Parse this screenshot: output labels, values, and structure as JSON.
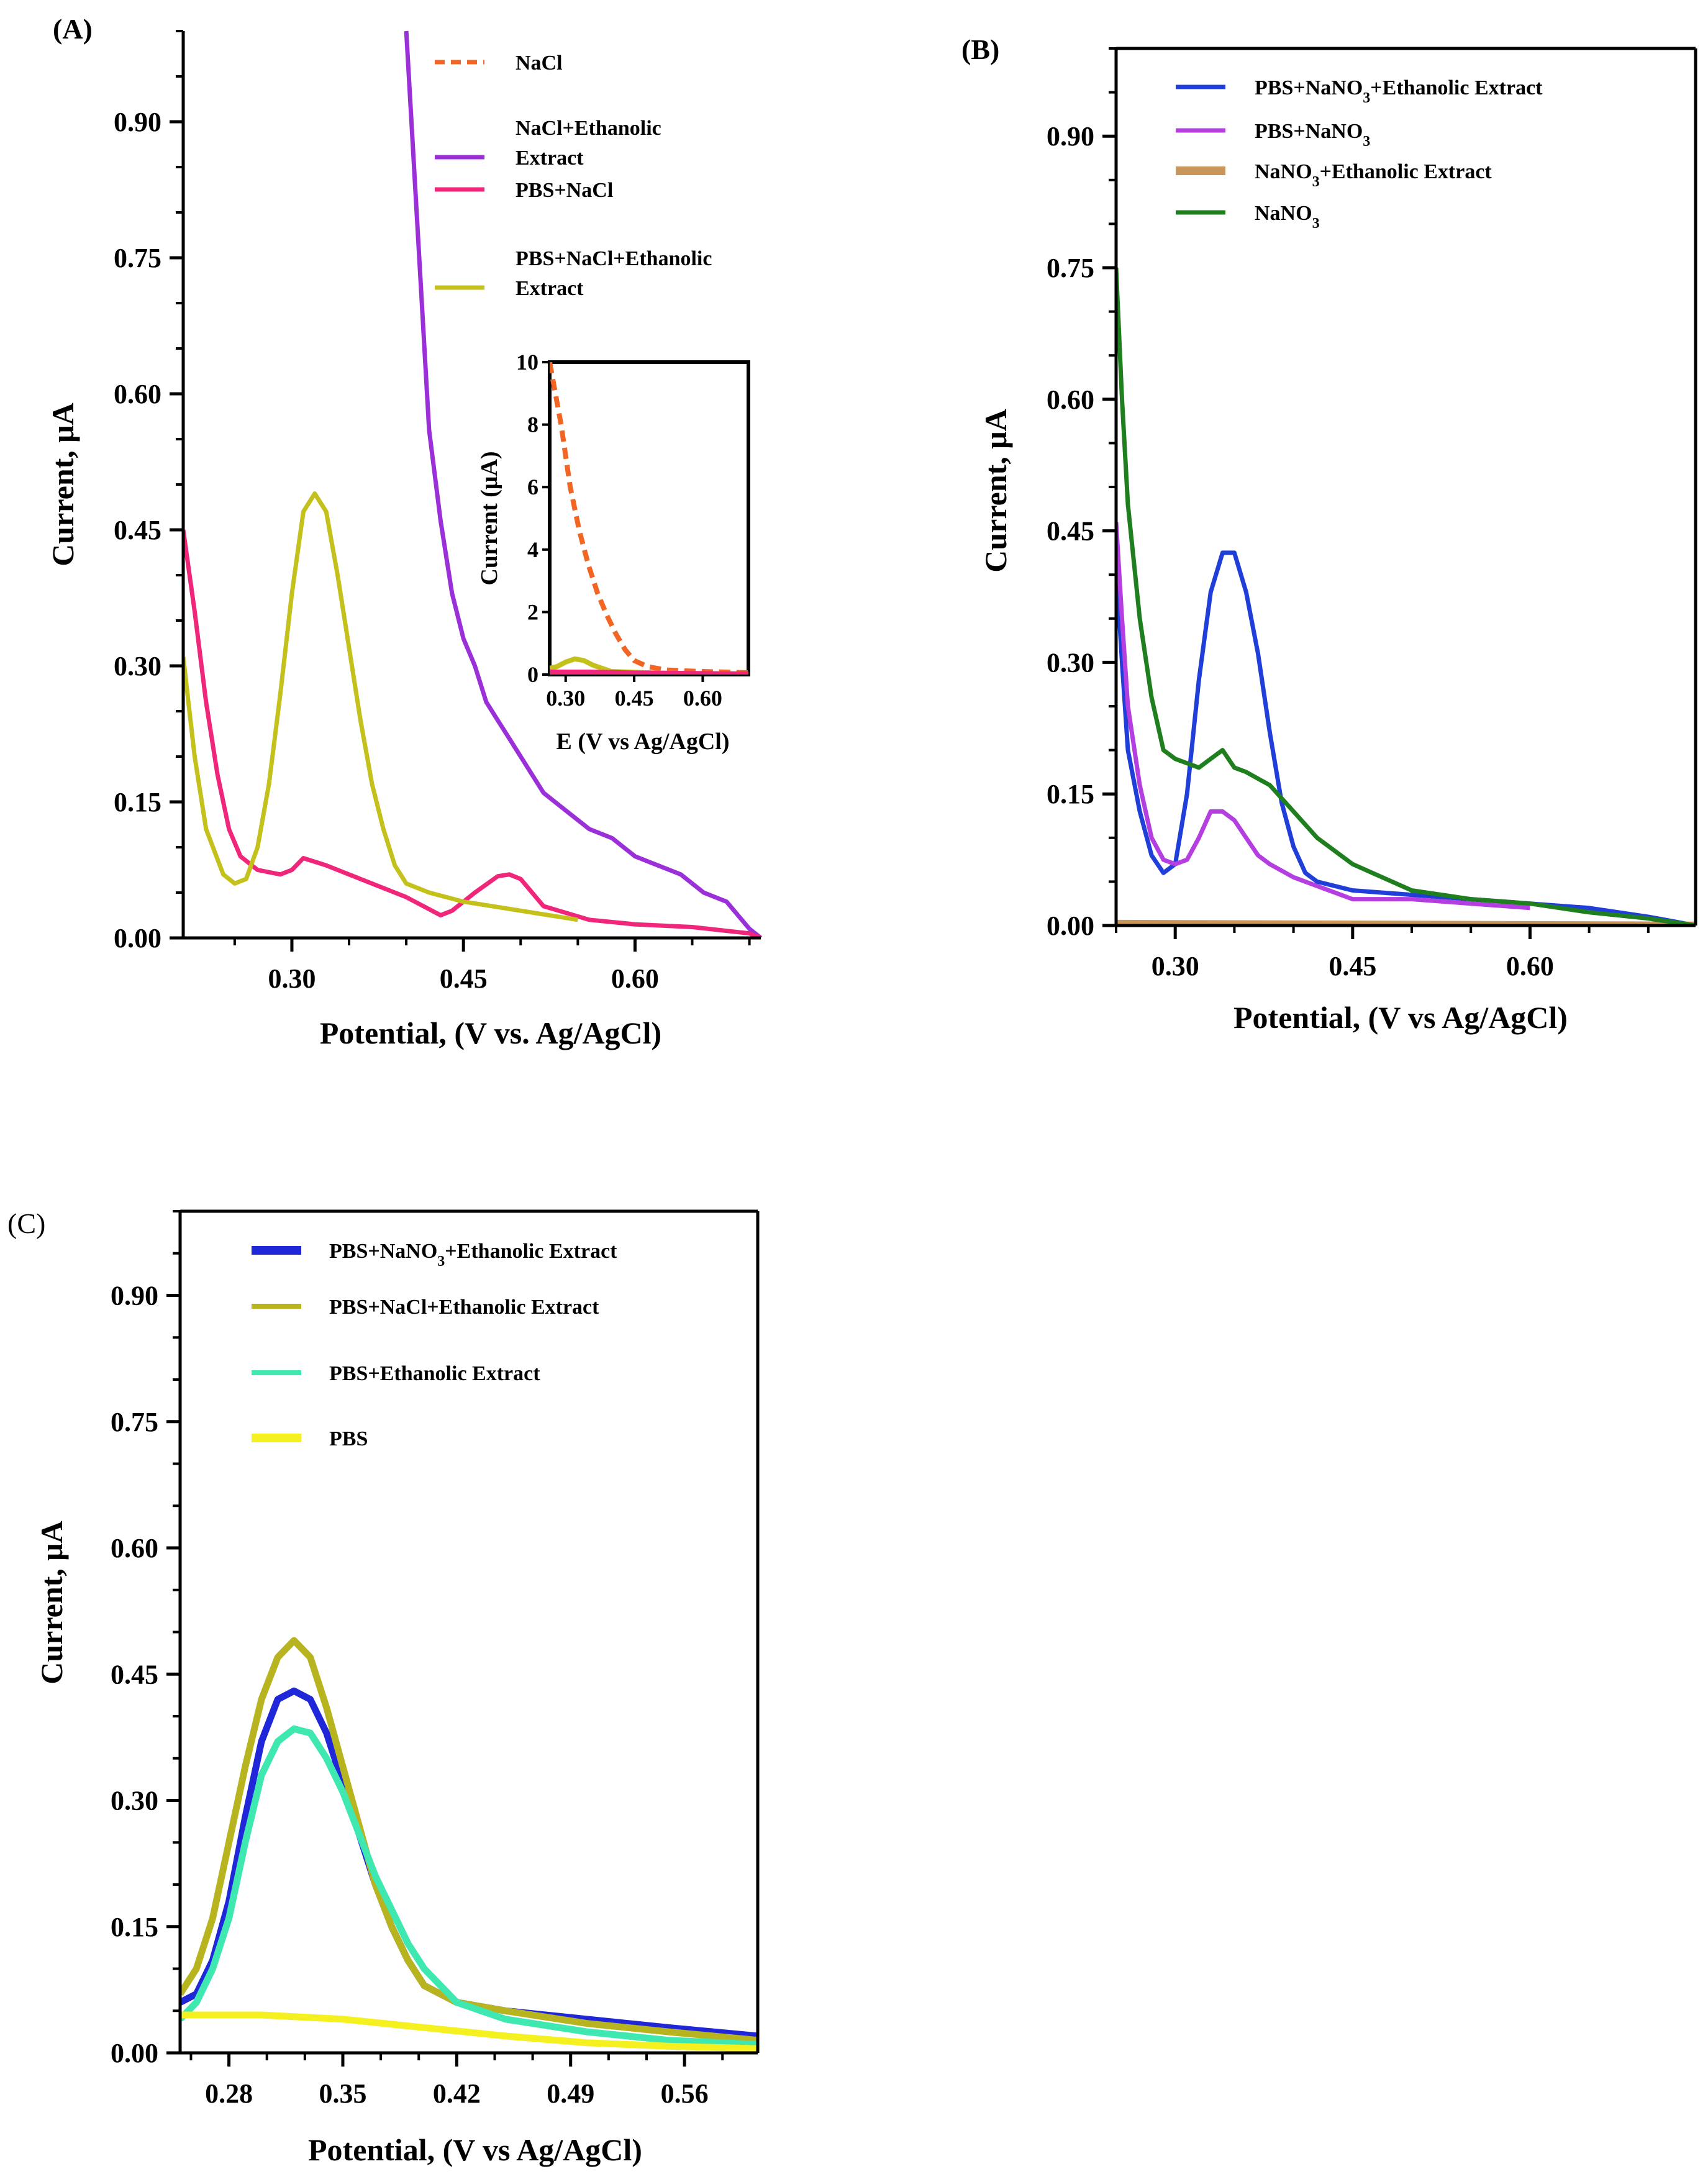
{
  "chart_data": [
    {
      "panel": "A",
      "panel_label": "(A)",
      "type": "line",
      "xlabel": "Potential, (V vs. Ag/AgCl)",
      "ylabel": "Current, μA",
      "xlim": [
        0.205,
        0.71
      ],
      "ylim": [
        0,
        1.0
      ],
      "xticks": [
        "0.30",
        "0.45",
        "0.60"
      ],
      "yticks": [
        "0.00",
        "0.15",
        "0.30",
        "0.45",
        "0.60",
        "0.75",
        "0.90"
      ],
      "legend_position": "top-right",
      "series": [
        {
          "name": "NaCl",
          "label_lines": [
            "NaCl"
          ],
          "color": "#f26522",
          "style": "dashed",
          "x": [],
          "y": []
        },
        {
          "name": "NaCl+Ethanolic Extract",
          "label_lines": [
            "NaCl+Ethanolic",
            "Extract"
          ],
          "color": "#9b30d9",
          "style": "solid",
          "x": [
            0.4,
            0.41,
            0.42,
            0.43,
            0.44,
            0.45,
            0.46,
            0.47,
            0.48,
            0.49,
            0.5,
            0.52,
            0.54,
            0.56,
            0.58,
            0.6,
            0.62,
            0.64,
            0.66,
            0.68,
            0.7,
            0.71
          ],
          "y": [
            1.0,
            0.78,
            0.56,
            0.46,
            0.38,
            0.33,
            0.3,
            0.26,
            0.24,
            0.22,
            0.2,
            0.16,
            0.14,
            0.12,
            0.11,
            0.09,
            0.08,
            0.07,
            0.05,
            0.04,
            0.01,
            0.0
          ]
        },
        {
          "name": "PBS+NaCl",
          "label_lines": [
            "PBS+NaCl"
          ],
          "color": "#f0267a",
          "style": "solid",
          "x": [
            0.205,
            0.215,
            0.225,
            0.235,
            0.245,
            0.255,
            0.27,
            0.29,
            0.3,
            0.31,
            0.33,
            0.36,
            0.4,
            0.43,
            0.44,
            0.46,
            0.48,
            0.49,
            0.5,
            0.52,
            0.56,
            0.6,
            0.65,
            0.7,
            0.71
          ],
          "y": [
            0.45,
            0.36,
            0.26,
            0.18,
            0.12,
            0.09,
            0.075,
            0.07,
            0.075,
            0.088,
            0.08,
            0.065,
            0.045,
            0.025,
            0.03,
            0.05,
            0.068,
            0.07,
            0.065,
            0.035,
            0.02,
            0.015,
            0.012,
            0.005,
            0.0
          ]
        },
        {
          "name": "PBS+NaCl+Ethanolic Extract",
          "label_lines": [
            "PBS+NaCl+Ethanolic",
            "Extract"
          ],
          "color": "#c4c01c",
          "style": "solid",
          "x": [
            0.205,
            0.215,
            0.225,
            0.24,
            0.25,
            0.26,
            0.27,
            0.28,
            0.29,
            0.3,
            0.31,
            0.32,
            0.33,
            0.34,
            0.35,
            0.36,
            0.37,
            0.38,
            0.39,
            0.4,
            0.42,
            0.45,
            0.5,
            0.55
          ],
          "y": [
            0.31,
            0.2,
            0.12,
            0.07,
            0.06,
            0.065,
            0.1,
            0.17,
            0.27,
            0.38,
            0.47,
            0.49,
            0.47,
            0.4,
            0.32,
            0.24,
            0.17,
            0.12,
            0.08,
            0.06,
            0.05,
            0.04,
            0.03,
            0.02
          ]
        }
      ],
      "inset": {
        "xlabel": "E (V vs Ag/AgCl)",
        "ylabel": "Current (μA)",
        "xlim": [
          0.265,
          0.7
        ],
        "ylim": [
          0,
          10
        ],
        "xticks": [
          "0.30",
          "0.45",
          "0.60"
        ],
        "yticks": [
          "0",
          "2",
          "4",
          "6",
          "8",
          "10"
        ],
        "series": [
          {
            "name": "NaCl",
            "color": "#f26522",
            "style": "dashed",
            "x": [
              0.265,
              0.29,
              0.31,
              0.33,
              0.35,
              0.37,
              0.39,
              0.41,
              0.43,
              0.45,
              0.48,
              0.52,
              0.56,
              0.6,
              0.65,
              0.7
            ],
            "y": [
              10,
              8,
              6,
              4.6,
              3.5,
              2.6,
              1.9,
              1.3,
              0.8,
              0.45,
              0.25,
              0.15,
              0.12,
              0.1,
              0.08,
              0.06
            ]
          },
          {
            "name": "PBS+NaCl+Ethanolic Extract",
            "color": "#c4c01c",
            "style": "solid",
            "x": [
              0.265,
              0.28,
              0.3,
              0.32,
              0.34,
              0.36,
              0.4,
              0.5,
              0.6,
              0.7
            ],
            "y": [
              0.2,
              0.25,
              0.4,
              0.5,
              0.45,
              0.3,
              0.1,
              0.05,
              0.03,
              0.02
            ]
          },
          {
            "name": "PBS+NaCl",
            "color": "#f0267a",
            "style": "solid",
            "x": [
              0.265,
              0.35,
              0.45,
              0.55,
              0.7
            ],
            "y": [
              0.08,
              0.08,
              0.05,
              0.04,
              0.02
            ]
          }
        ]
      }
    },
    {
      "panel": "B",
      "panel_label": "(B)",
      "type": "line",
      "xlabel": "Potential, (V vs Ag/AgCl)",
      "ylabel": "Current, μA",
      "xlim": [
        0.25,
        0.74
      ],
      "ylim": [
        0,
        1.0
      ],
      "xticks": [
        "0.30",
        "0.45",
        "0.60"
      ],
      "yticks": [
        "0.00",
        "0.15",
        "0.30",
        "0.45",
        "0.60",
        "0.75",
        "0.90"
      ],
      "legend_position": "top",
      "series": [
        {
          "name": "PBS+NaNO3+Ethanolic Extract",
          "label_base": "PBS+NaNO",
          "label_sub": "3",
          "label_after": "+Ethanolic Extract",
          "color": "#1f3fd8",
          "style": "solid",
          "x": [
            0.25,
            0.255,
            0.26,
            0.27,
            0.28,
            0.29,
            0.3,
            0.31,
            0.32,
            0.33,
            0.34,
            0.35,
            0.36,
            0.37,
            0.38,
            0.39,
            0.4,
            0.41,
            0.42,
            0.45,
            0.5,
            0.55,
            0.6,
            0.65,
            0.7,
            0.74
          ],
          "y": [
            0.41,
            0.3,
            0.2,
            0.13,
            0.08,
            0.06,
            0.07,
            0.15,
            0.28,
            0.38,
            0.425,
            0.425,
            0.38,
            0.31,
            0.22,
            0.14,
            0.09,
            0.06,
            0.05,
            0.04,
            0.035,
            0.03,
            0.025,
            0.02,
            0.01,
            0.0
          ]
        },
        {
          "name": "PBS+NaNO3",
          "label_base": "PBS+NaNO",
          "label_sub": "3",
          "label_after": "",
          "color": "#b43ee0",
          "style": "solid",
          "x": [
            0.25,
            0.255,
            0.26,
            0.27,
            0.28,
            0.29,
            0.3,
            0.31,
            0.32,
            0.33,
            0.34,
            0.35,
            0.36,
            0.37,
            0.38,
            0.4,
            0.42,
            0.45,
            0.5,
            0.55,
            0.6
          ],
          "y": [
            0.46,
            0.35,
            0.25,
            0.16,
            0.1,
            0.075,
            0.07,
            0.075,
            0.1,
            0.13,
            0.13,
            0.12,
            0.1,
            0.08,
            0.07,
            0.055,
            0.045,
            0.03,
            0.03,
            0.025,
            0.02
          ]
        },
        {
          "name": "NaNO3+Ethanolic Extract",
          "label_base": "NaNO",
          "label_sub": "3",
          "label_after": "+Ethanolic Extract",
          "color": "#c8965a",
          "style": "solid",
          "x": [
            0.25,
            0.74
          ],
          "y": [
            0.004,
            0.002
          ]
        },
        {
          "name": "NaNO3",
          "label_base": "NaNO",
          "label_sub": "3",
          "label_after": "",
          "color": "#1f7f1f",
          "style": "solid",
          "x": [
            0.25,
            0.255,
            0.26,
            0.27,
            0.28,
            0.29,
            0.3,
            0.32,
            0.33,
            0.34,
            0.35,
            0.36,
            0.38,
            0.4,
            0.42,
            0.45,
            0.5,
            0.55,
            0.6,
            0.65,
            0.7,
            0.74
          ],
          "y": [
            0.75,
            0.6,
            0.48,
            0.35,
            0.26,
            0.2,
            0.19,
            0.18,
            0.19,
            0.2,
            0.18,
            0.175,
            0.16,
            0.13,
            0.1,
            0.07,
            0.04,
            0.03,
            0.025,
            0.015,
            0.008,
            0.0
          ]
        }
      ]
    },
    {
      "panel": "C",
      "panel_label": "(C)",
      "type": "line",
      "xlabel": "Potential, (V vs Ag/AgCl)",
      "ylabel": "Current, μA",
      "xlim": [
        0.25,
        0.605
      ],
      "ylim": [
        0,
        1.0
      ],
      "xticks": [
        "0.28",
        "0.35",
        "0.42",
        "0.49",
        "0.56"
      ],
      "yticks": [
        "0.00",
        "0.15",
        "0.30",
        "0.45",
        "0.60",
        "0.75",
        "0.90"
      ],
      "legend_position": "top-left",
      "series": [
        {
          "name": "PBS+NaNO3+Ethanolic Extract",
          "label_base": "PBS+NaNO",
          "label_sub": "3",
          "label_after": "+Ethanolic Extract",
          "color": "#1f27d8",
          "style": "solid",
          "x": [
            0.25,
            0.26,
            0.27,
            0.28,
            0.29,
            0.3,
            0.31,
            0.32,
            0.33,
            0.34,
            0.35,
            0.36,
            0.37,
            0.38,
            0.39,
            0.4,
            0.42,
            0.45,
            0.5,
            0.55,
            0.605
          ],
          "y": [
            0.06,
            0.07,
            0.11,
            0.18,
            0.28,
            0.37,
            0.42,
            0.43,
            0.42,
            0.38,
            0.32,
            0.26,
            0.2,
            0.15,
            0.11,
            0.08,
            0.06,
            0.05,
            0.04,
            0.03,
            0.02
          ]
        },
        {
          "name": "PBS+NaCl+Ethanolic Extract",
          "label_base": "PBS+NaCl+Ethanolic Extract",
          "label_sub": "",
          "label_after": "",
          "color": "#b8b420",
          "style": "solid",
          "x": [
            0.25,
            0.26,
            0.27,
            0.28,
            0.29,
            0.3,
            0.31,
            0.32,
            0.33,
            0.34,
            0.35,
            0.36,
            0.37,
            0.38,
            0.39,
            0.4,
            0.42,
            0.45,
            0.5,
            0.55,
            0.605
          ],
          "y": [
            0.07,
            0.1,
            0.16,
            0.25,
            0.34,
            0.42,
            0.47,
            0.49,
            0.47,
            0.41,
            0.34,
            0.27,
            0.2,
            0.15,
            0.11,
            0.08,
            0.06,
            0.05,
            0.035,
            0.025,
            0.015
          ]
        },
        {
          "name": "PBS+Ethanolic Extract",
          "label_base": "PBS+Ethanolic Extract",
          "label_sub": "",
          "label_after": "",
          "color": "#3ee8b0",
          "style": "solid",
          "x": [
            0.25,
            0.26,
            0.27,
            0.28,
            0.29,
            0.3,
            0.31,
            0.32,
            0.33,
            0.34,
            0.35,
            0.36,
            0.37,
            0.38,
            0.39,
            0.4,
            0.42,
            0.45,
            0.5,
            0.55,
            0.605
          ],
          "y": [
            0.04,
            0.06,
            0.1,
            0.16,
            0.25,
            0.33,
            0.37,
            0.385,
            0.38,
            0.35,
            0.31,
            0.26,
            0.21,
            0.17,
            0.13,
            0.1,
            0.06,
            0.04,
            0.025,
            0.015,
            0.01
          ]
        },
        {
          "name": "PBS",
          "label_base": "PBS",
          "label_sub": "",
          "label_after": "",
          "color": "#f5f020",
          "style": "solid",
          "x": [
            0.25,
            0.3,
            0.35,
            0.4,
            0.45,
            0.5,
            0.55,
            0.605
          ],
          "y": [
            0.045,
            0.045,
            0.04,
            0.03,
            0.02,
            0.012,
            0.008,
            0.005
          ]
        }
      ]
    }
  ]
}
